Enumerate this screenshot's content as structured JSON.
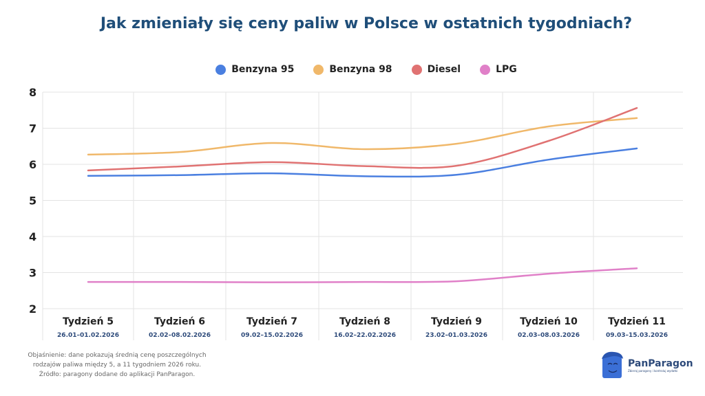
{
  "chart_data": {
    "type": "line",
    "title": "Jak zmieniały się ceny paliw w Polsce w ostatnich tygodniach?",
    "categories": [
      "Tydzień 5",
      "Tydzień 6",
      "Tydzień 7",
      "Tydzień 8",
      "Tydzień 9",
      "Tydzień 10",
      "Tydzień 11"
    ],
    "date_ranges": [
      "26.01–01.02.2026",
      "02.02–08.02.2026",
      "09.02–15.02.2026",
      "16.02–22.02.2026",
      "23.02–01.03.2026",
      "02.03–08.03.2026",
      "09.03–15.03.2026"
    ],
    "ylim": [
      2,
      8
    ],
    "yticks": [
      2,
      3,
      4,
      5,
      6,
      7,
      8
    ],
    "grid": true,
    "legend": "top",
    "series": [
      {
        "name": "Benzyna 95",
        "color": "#4a7fe0",
        "values": [
          5.68,
          5.7,
          5.75,
          5.67,
          5.71,
          6.13,
          6.44
        ]
      },
      {
        "name": "Benzyna 98",
        "color": "#f0b86a",
        "values": [
          6.27,
          6.34,
          6.59,
          6.42,
          6.57,
          7.05,
          7.28
        ]
      },
      {
        "name": "Diesel",
        "color": "#e07272",
        "values": [
          5.83,
          5.94,
          6.06,
          5.95,
          5.96,
          6.65,
          7.56
        ]
      },
      {
        "name": "LPG",
        "color": "#e080c8",
        "values": [
          2.74,
          2.74,
          2.73,
          2.74,
          2.76,
          2.97,
          3.12
        ]
      }
    ]
  },
  "footnote": [
    "Objaśnienie: dane pokazują średnią cenę poszczególnych",
    "rodzajów paliwa między 5, a 11 tygodniem 2026 roku.",
    "Źródło: paragony dodane do aplikacji PanParagon."
  ],
  "logo": {
    "brand": "PanParagon",
    "tagline": "Zbieraj paragony i kontroluj wydatki"
  }
}
